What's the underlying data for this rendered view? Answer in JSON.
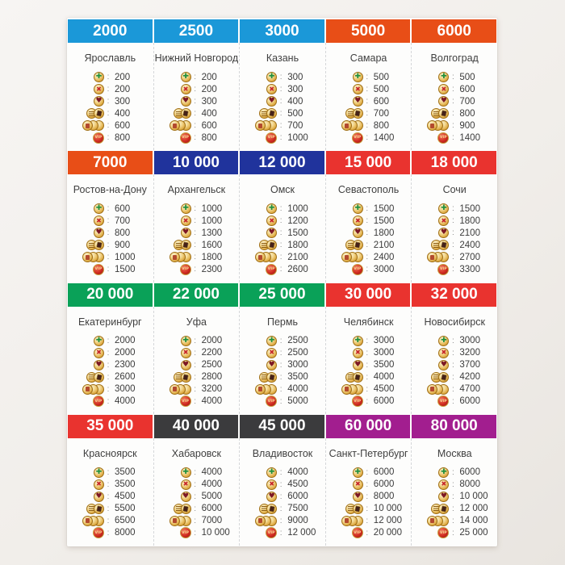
{
  "ui": {
    "colon": ":"
  },
  "palette": {
    "light_blue": "#1b98d8",
    "orange": "#e84e17",
    "navy": "#20339c",
    "red": "#e9332f",
    "green": "#0aa158",
    "dark": "#3b3b3d",
    "purple": "#a21e8f",
    "sheet": "#fdfdfc"
  },
  "icons": {
    "plus": {
      "name": "green-cross-coin",
      "glyph": "✚"
    },
    "cross": {
      "name": "red-cross-coin",
      "glyph": "✖"
    },
    "heart": {
      "name": "heart-coin",
      "glyph": "♥"
    },
    "banknote": {
      "name": "banknote-coins"
    },
    "stack": {
      "name": "coin-stack"
    },
    "vip": {
      "name": "vip-coin",
      "glyph": "VIP"
    }
  },
  "rows": [
    {
      "cards": [
        {
          "price": "2000",
          "color": "light_blue",
          "city": "Ярославль",
          "values": [
            "200",
            "200",
            "300",
            "400",
            "600",
            "800"
          ]
        },
        {
          "price": "2500",
          "color": "light_blue",
          "city": "Нижний Новгород",
          "values": [
            "200",
            "200",
            "300",
            "400",
            "600",
            "800"
          ]
        },
        {
          "price": "3000",
          "color": "light_blue",
          "city": "Казань",
          "values": [
            "300",
            "300",
            "400",
            "500",
            "700",
            "1000"
          ]
        },
        {
          "price": "5000",
          "color": "orange",
          "city": "Самара",
          "values": [
            "500",
            "500",
            "600",
            "700",
            "800",
            "1400"
          ]
        },
        {
          "price": "6000",
          "color": "orange",
          "city": "Волгоград",
          "values": [
            "500",
            "600",
            "700",
            "800",
            "900",
            "1400"
          ]
        }
      ]
    },
    {
      "cards": [
        {
          "price": "7000",
          "color": "orange",
          "city": "Ростов-на-Дону",
          "values": [
            "600",
            "700",
            "800",
            "900",
            "1000",
            "1500"
          ]
        },
        {
          "price": "10 000",
          "color": "navy",
          "city": "Архангельск",
          "values": [
            "1000",
            "1000",
            "1300",
            "1600",
            "1800",
            "2300"
          ]
        },
        {
          "price": "12 000",
          "color": "navy",
          "city": "Омск",
          "values": [
            "1000",
            "1200",
            "1500",
            "1800",
            "2100",
            "2600"
          ]
        },
        {
          "price": "15 000",
          "color": "red",
          "city": "Севастополь",
          "values": [
            "1500",
            "1500",
            "1800",
            "2100",
            "2400",
            "3000"
          ]
        },
        {
          "price": "18 000",
          "color": "red",
          "city": "Сочи",
          "values": [
            "1500",
            "1800",
            "2100",
            "2400",
            "2700",
            "3300"
          ]
        }
      ]
    },
    {
      "cards": [
        {
          "price": "20 000",
          "color": "green",
          "city": "Екатеринбург",
          "values": [
            "2000",
            "2000",
            "2300",
            "2600",
            "3000",
            "4000"
          ]
        },
        {
          "price": "22 000",
          "color": "green",
          "city": "Уфа",
          "values": [
            "2000",
            "2200",
            "2500",
            "2800",
            "3200",
            "4000"
          ]
        },
        {
          "price": "25 000",
          "color": "green",
          "city": "Пермь",
          "values": [
            "2500",
            "2500",
            "3000",
            "3500",
            "4000",
            "5000"
          ]
        },
        {
          "price": "30 000",
          "color": "red",
          "city": "Челябинск",
          "values": [
            "3000",
            "3000",
            "3500",
            "4000",
            "4500",
            "6000"
          ]
        },
        {
          "price": "32 000",
          "color": "red",
          "city": "Новосибирск",
          "values": [
            "3000",
            "3200",
            "3700",
            "4200",
            "4700",
            "6000"
          ]
        }
      ]
    },
    {
      "cards": [
        {
          "price": "35 000",
          "color": "red",
          "city": "Красноярск",
          "values": [
            "3500",
            "3500",
            "4500",
            "5500",
            "6500",
            "8000"
          ]
        },
        {
          "price": "40 000",
          "color": "dark",
          "city": "Хабаровск",
          "values": [
            "4000",
            "4000",
            "5000",
            "6000",
            "7000",
            "10 000"
          ]
        },
        {
          "price": "45 000",
          "color": "dark",
          "city": "Владивосток",
          "values": [
            "4000",
            "4500",
            "6000",
            "7500",
            "9000",
            "12 000"
          ]
        },
        {
          "price": "60 000",
          "color": "purple",
          "city": "Санкт-Петербург",
          "values": [
            "6000",
            "6000",
            "8000",
            "10 000",
            "12 000",
            "20 000"
          ]
        },
        {
          "price": "80 000",
          "color": "purple",
          "city": "Москва",
          "values": [
            "6000",
            "8000",
            "10 000",
            "12 000",
            "14 000",
            "25 000"
          ]
        }
      ]
    }
  ]
}
